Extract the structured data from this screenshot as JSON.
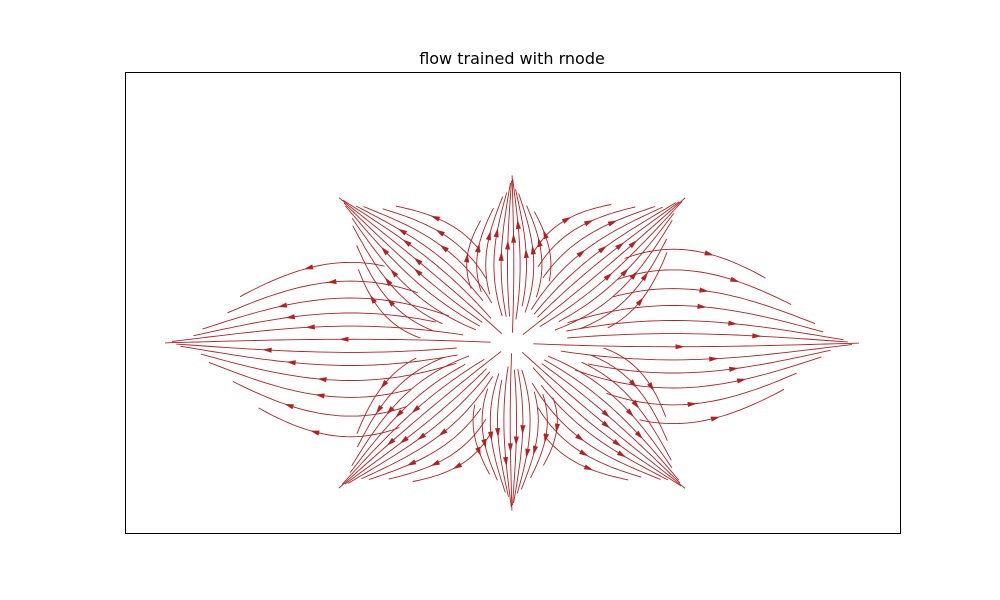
{
  "chart_data": {
    "type": "streamplot",
    "title": "flow trained with rnode",
    "xlabel": "",
    "ylabel": "",
    "grid": false,
    "axis_ticks_visible": false,
    "line_color": "#b22222",
    "field": {
      "center": [
        0,
        0
      ],
      "petal_count": 8,
      "petal_directions_deg": [
        90,
        40,
        0,
        -40,
        -90,
        -140,
        180,
        140
      ],
      "flow_direction": "outward along each petal from the center",
      "x_extent": [
        -3.0,
        3.0
      ],
      "y_extent": [
        -2.6,
        2.6
      ]
    }
  }
}
